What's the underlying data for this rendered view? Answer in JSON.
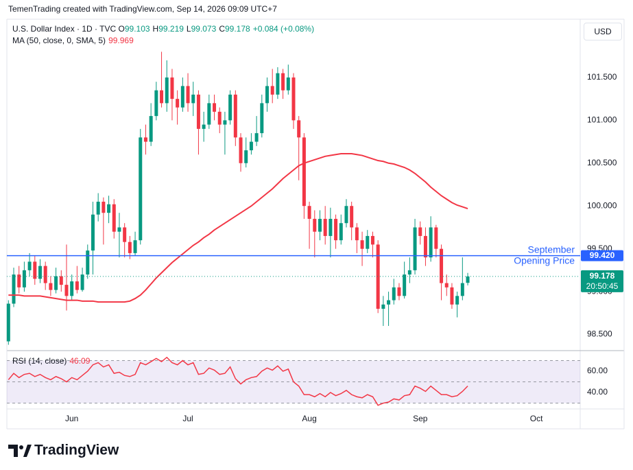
{
  "header": "TemenTrading created with TradingView.com, Sep 14, 2026 09:09 UTC+7",
  "currency": "USD",
  "brand": "TradingView",
  "chart_data": [
    {
      "type": "candlestick",
      "symbol": "U.S. Dollar Index · 1D · TVC",
      "ohlc_labels": [
        "O",
        "H",
        "L",
        "C"
      ],
      "change": "+0.084 (+0.08%)",
      "countdown": "20:50:45",
      "up_color": "#089981",
      "down_color": "#f23645",
      "xlim": [
        -0.3,
        108.3
      ],
      "xticks": [
        {
          "value": 12,
          "label": "Jun"
        },
        {
          "value": 34,
          "label": "Jul"
        },
        {
          "value": 57,
          "label": "Aug"
        },
        {
          "value": 78,
          "label": "Sep"
        },
        {
          "value": 100,
          "label": "Oct"
        }
      ],
      "ylim": [
        98.32,
        102.18
      ],
      "yticks": [
        {
          "value": 98.5,
          "label": "98.500"
        },
        {
          "value": 99.0,
          "label": "99.000"
        },
        {
          "value": 99.5,
          "label": "99.500"
        },
        {
          "value": 100.0,
          "label": "100.000"
        },
        {
          "value": 100.5,
          "label": "100.500"
        },
        {
          "value": 101.0,
          "label": "101.000"
        },
        {
          "value": 101.5,
          "label": "101.500"
        }
      ],
      "grid": false,
      "open": [
        98.42,
        98.86,
        99.2,
        99.05,
        99.25,
        99.35,
        99.15,
        99.3,
        99.1,
        99.02,
        99.18,
        99.08,
        98.95,
        99.12,
        99.02,
        99.2,
        99.48,
        99.9,
        100.05,
        99.92,
        100.02,
        99.7,
        99.75,
        99.58,
        99.45,
        99.6,
        100.8,
        100.75,
        101.05,
        101.35,
        101.2,
        101.5,
        101.25,
        101.15,
        101.4,
        101.2,
        101.3,
        100.9,
        100.95,
        101.2,
        101.1,
        100.95,
        101.0,
        101.3,
        100.8,
        100.5,
        100.65,
        100.75,
        100.85,
        101.2,
        101.4,
        101.3,
        101.55,
        101.35,
        101.5,
        101.0,
        100.8,
        100.0,
        99.85,
        99.7,
        99.85,
        99.65,
        99.85,
        99.6,
        99.8,
        100.0,
        99.75,
        99.6,
        99.5,
        99.65,
        99.55,
        98.8,
        98.85,
        98.9,
        99.05,
        98.95,
        99.2,
        99.25,
        99.75,
        99.65,
        99.4,
        99.75,
        99.5,
        99.1,
        99.05,
        98.85,
        98.95,
        99.103
      ],
      "high": [
        98.9,
        99.28,
        99.3,
        99.35,
        99.45,
        99.42,
        99.38,
        99.35,
        99.18,
        99.28,
        99.25,
        99.55,
        99.2,
        99.3,
        99.28,
        99.55,
        100.05,
        100.15,
        100.1,
        100.12,
        100.08,
        99.92,
        99.8,
        99.65,
        99.7,
        100.9,
        100.95,
        101.2,
        101.45,
        101.8,
        101.7,
        101.6,
        101.35,
        101.5,
        101.55,
        101.45,
        101.35,
        101.1,
        101.3,
        101.3,
        101.15,
        101.1,
        101.35,
        101.35,
        100.85,
        100.8,
        100.85,
        101.05,
        101.3,
        101.5,
        101.6,
        101.62,
        101.6,
        101.65,
        101.55,
        101.05,
        100.85,
        100.05,
        99.95,
        99.95,
        100.0,
        99.98,
        99.9,
        99.9,
        100.08,
        100.05,
        99.8,
        99.7,
        99.72,
        99.7,
        99.6,
        98.95,
        99.0,
        99.15,
        99.1,
        99.35,
        99.4,
        99.85,
        99.82,
        99.75,
        99.88,
        99.78,
        99.55,
        99.2,
        99.1,
        99.0,
        99.4,
        99.219
      ],
      "low": [
        98.38,
        98.82,
        98.98,
        99.0,
        99.18,
        99.08,
        99.1,
        99.02,
        98.95,
        98.98,
        99.0,
        98.78,
        98.9,
        98.98,
        99.0,
        99.15,
        99.2,
        99.82,
        99.55,
        99.8,
        99.62,
        99.4,
        99.4,
        99.38,
        99.42,
        99.55,
        100.6,
        100.7,
        101.0,
        101.15,
        101.1,
        101.0,
        100.95,
        101.1,
        101.1,
        101.05,
        100.6,
        100.75,
        100.9,
        101.0,
        100.85,
        100.6,
        100.95,
        100.7,
        100.4,
        100.45,
        100.6,
        100.7,
        100.8,
        101.1,
        101.2,
        101.25,
        101.25,
        101.3,
        100.9,
        100.3,
        99.85,
        99.5,
        99.4,
        99.6,
        99.55,
        99.4,
        99.5,
        99.55,
        99.75,
        99.6,
        99.45,
        99.3,
        99.45,
        99.4,
        98.75,
        98.6,
        98.6,
        98.85,
        98.9,
        98.92,
        99.1,
        99.2,
        99.55,
        99.3,
        99.35,
        99.4,
        98.9,
        98.95,
        98.8,
        98.7,
        98.9,
        99.073
      ],
      "close": [
        98.86,
        99.2,
        99.05,
        99.25,
        99.35,
        99.15,
        99.3,
        99.1,
        99.02,
        99.18,
        99.08,
        98.95,
        99.12,
        99.02,
        99.2,
        99.48,
        99.9,
        100.05,
        99.92,
        100.02,
        99.7,
        99.75,
        99.58,
        99.45,
        99.6,
        100.8,
        100.75,
        101.05,
        101.35,
        101.2,
        101.5,
        101.25,
        101.15,
        101.4,
        101.2,
        101.3,
        100.9,
        100.95,
        101.2,
        101.1,
        100.95,
        101.0,
        101.3,
        100.8,
        100.5,
        100.65,
        100.75,
        100.85,
        101.2,
        101.4,
        101.3,
        101.55,
        101.35,
        101.5,
        101.0,
        100.8,
        100.0,
        99.85,
        99.7,
        99.85,
        99.65,
        99.85,
        99.6,
        99.8,
        100.0,
        99.75,
        99.6,
        99.5,
        99.65,
        99.55,
        98.8,
        98.85,
        98.9,
        99.05,
        98.95,
        99.2,
        99.25,
        99.75,
        99.65,
        99.4,
        99.75,
        99.5,
        99.1,
        99.05,
        98.85,
        98.95,
        99.1,
        99.178
      ],
      "series": [
        {
          "name": "MA (50, close, 0, SMA, 5)",
          "color": "#f23645",
          "values": [
            98.96,
            98.96,
            98.96,
            98.95,
            98.95,
            98.95,
            98.95,
            98.94,
            98.93,
            98.92,
            98.91,
            98.9,
            98.9,
            98.9,
            98.89,
            98.89,
            98.89,
            98.88,
            98.88,
            98.88,
            98.88,
            98.88,
            98.88,
            98.89,
            98.92,
            98.96,
            99.02,
            99.09,
            99.16,
            99.22,
            99.28,
            99.34,
            99.39,
            99.44,
            99.49,
            99.54,
            99.58,
            99.63,
            99.67,
            99.72,
            99.76,
            99.8,
            99.84,
            99.88,
            99.92,
            99.96,
            100.0,
            100.05,
            100.1,
            100.15,
            100.2,
            100.26,
            100.32,
            100.37,
            100.42,
            100.47,
            100.5,
            100.52,
            100.54,
            100.56,
            100.58,
            100.59,
            100.6,
            100.61,
            100.61,
            100.61,
            100.6,
            100.59,
            100.57,
            100.55,
            100.53,
            100.52,
            100.5,
            100.49,
            100.47,
            100.45,
            100.42,
            100.38,
            100.33,
            100.28,
            100.22,
            100.17,
            100.12,
            100.08,
            100.04,
            100.01,
            99.99,
            99.969
          ]
        }
      ],
      "reference_line": {
        "value": 99.42,
        "label": "99.420",
        "text": [
          "September",
          "Opening Price"
        ],
        "color": "#2962ff"
      }
    },
    {
      "type": "line",
      "ylim": [
        25.2,
        78.7
      ],
      "yticks": [
        {
          "value": 60,
          "label": "60.00"
        },
        {
          "value": 40,
          "label": "40.00"
        }
      ],
      "bands": [
        70,
        50,
        30
      ],
      "band_color": "#7e57c2",
      "series": [
        {
          "name": "RSI (14, close)",
          "color": "#f23645",
          "values": [
            52,
            58,
            54,
            57,
            58,
            55,
            57,
            54,
            52,
            55,
            53,
            50,
            54,
            52,
            56,
            60,
            66,
            68,
            64,
            66,
            58,
            59,
            56,
            55,
            57,
            68,
            66,
            69,
            72,
            69,
            73,
            68,
            66,
            70,
            66,
            68,
            57,
            58,
            63,
            61,
            57,
            58,
            64,
            53,
            48,
            52,
            54,
            55,
            60,
            63,
            61,
            65,
            60,
            62,
            50,
            46,
            38,
            38,
            36,
            39,
            36,
            40,
            37,
            39,
            42,
            38,
            36,
            35,
            38,
            36,
            28,
            30,
            31,
            34,
            33,
            37,
            38,
            46,
            44,
            41,
            46,
            42,
            38,
            38,
            36,
            37,
            41,
            46.09
          ]
        }
      ]
    }
  ]
}
